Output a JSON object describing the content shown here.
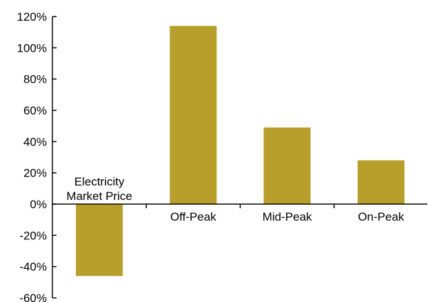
{
  "chart_data": {
    "type": "bar",
    "categories": [
      "Electricity Market Price",
      "Off-Peak",
      "Mid-Peak",
      "On-Peak"
    ],
    "category_label_lines": [
      [
        "Electricity",
        "Market Price"
      ],
      [
        "Off-Peak"
      ],
      [
        "Mid-Peak"
      ],
      [
        "On-Peak"
      ]
    ],
    "values": [
      -46,
      114,
      49,
      28
    ],
    "ylim": [
      -60,
      120
    ],
    "yticks": [
      -60,
      -40,
      -20,
      0,
      20,
      40,
      60,
      80,
      100,
      120
    ],
    "ytick_labels": [
      "-60%",
      "-40%",
      "-20%",
      "0%",
      "20%",
      "40%",
      "60%",
      "80%",
      "100%",
      "120%"
    ],
    "bar_color": "#b89e2a",
    "grid": false,
    "title": "",
    "xlabel": "",
    "ylabel": ""
  }
}
